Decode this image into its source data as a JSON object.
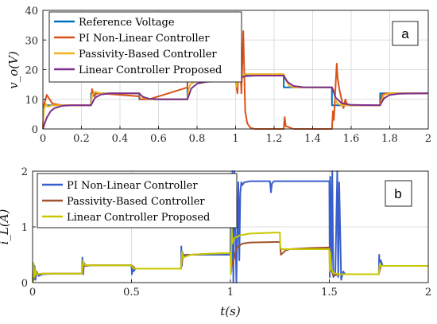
{
  "chart_data": [
    {
      "type": "line",
      "panel_label": "a",
      "ylabel": "v_o(V)",
      "xlabel": "",
      "xlim": [
        0,
        2
      ],
      "ylim": [
        0,
        40
      ],
      "xticks": [
        "0",
        "0.2",
        "0.4",
        "0.6",
        "0.8",
        "1",
        "1.2",
        "1.4",
        "1.6",
        "1.8",
        "2"
      ],
      "yticks": [
        "0",
        "10",
        "20",
        "30",
        "40"
      ],
      "grid": true,
      "legend": "top-left",
      "series": [
        {
          "name": "Reference Voltage",
          "color": "#0072BD",
          "x": [
            0,
            0.25,
            0.25,
            0.5,
            0.5,
            0.75,
            0.75,
            1.0,
            1.0,
            1.25,
            1.25,
            1.5,
            1.5,
            1.75,
            1.75,
            2.0
          ],
          "y": [
            8,
            8,
            12,
            12,
            10,
            10,
            16,
            16,
            18,
            18,
            14,
            14,
            8,
            8,
            12,
            12
          ]
        },
        {
          "name": "PI Non-Linear Controller",
          "color": "#D95319",
          "x": [
            0,
            0.005,
            0.02,
            0.05,
            0.1,
            0.25,
            0.255,
            0.265,
            0.28,
            0.3,
            0.5,
            0.505,
            0.52,
            0.55,
            0.75,
            0.752,
            0.76,
            0.78,
            0.8,
            1.0,
            1.005,
            1.01,
            1.02,
            1.03,
            1.04,
            1.05,
            1.06,
            1.07,
            1.08,
            1.1,
            1.15,
            1.25,
            1.255,
            1.26,
            1.3,
            1.5,
            1.505,
            1.51,
            1.515,
            1.52,
            1.525,
            1.53,
            1.54,
            1.55,
            1.56,
            1.57,
            1.58,
            1.6,
            1.75,
            1.76,
            1.78,
            2.0
          ],
          "y": [
            0,
            8,
            11.5,
            8.5,
            8,
            8,
            13.5,
            11,
            12,
            12,
            11,
            10,
            10,
            10,
            14,
            19,
            16,
            16,
            16,
            18,
            14,
            12,
            31,
            12,
            33,
            6,
            2,
            1,
            0.3,
            0,
            0,
            0,
            4,
            1,
            0,
            0,
            6,
            3,
            9,
            16,
            22,
            17,
            13,
            10,
            7,
            10,
            8,
            8,
            8,
            11.5,
            12,
            12
          ]
        },
        {
          "name": "Passivity-Based Controller",
          "color": "#EDB120",
          "x": [
            0,
            0.005,
            0.015,
            0.025,
            0.05,
            0.1,
            0.25,
            0.255,
            0.27,
            0.3,
            0.5,
            0.52,
            0.55,
            0.75,
            0.755,
            0.765,
            0.8,
            0.85,
            1.0,
            1.005,
            1.01,
            1.05,
            1.1,
            1.25,
            1.26,
            1.28,
            1.3,
            1.5,
            1.51,
            1.52,
            1.53,
            1.55,
            1.6,
            1.75,
            1.77,
            1.8,
            2.0
          ],
          "y": [
            0,
            6.5,
            8.5,
            7.5,
            8,
            8,
            8,
            11.5,
            12.5,
            12,
            12,
            10.5,
            10,
            10,
            13,
            15,
            16.5,
            16.5,
            16.5,
            14,
            17,
            18.5,
            18.5,
            18.5,
            16.5,
            14.5,
            14,
            14,
            13,
            9.5,
            8.5,
            8,
            8,
            8,
            11.5,
            12,
            12
          ]
        },
        {
          "name": "Linear Controller Proposed",
          "color": "#7E2F8E",
          "x": [
            0,
            0.01,
            0.02,
            0.04,
            0.06,
            0.1,
            0.15,
            0.25,
            0.27,
            0.3,
            0.35,
            0.5,
            0.52,
            0.55,
            0.6,
            0.75,
            0.77,
            0.8,
            0.85,
            0.9,
            1.0,
            1.02,
            1.05,
            1.1,
            1.25,
            1.27,
            1.3,
            1.35,
            1.5,
            1.52,
            1.55,
            1.6,
            1.75,
            1.77,
            1.8,
            1.85,
            2.0
          ],
          "y": [
            0,
            2,
            3.8,
            6,
            7,
            7.8,
            8,
            8,
            10.5,
            11.6,
            12,
            12,
            10.8,
            10.2,
            10,
            10,
            13.6,
            15.3,
            15.9,
            16,
            16,
            17.1,
            17.8,
            18,
            18,
            15.8,
            14.5,
            14.1,
            14,
            10.5,
            8.7,
            8.1,
            8,
            10.3,
            11.5,
            11.9,
            12
          ]
        }
      ]
    },
    {
      "type": "line",
      "panel_label": "b",
      "ylabel": "i_L(A)",
      "xlabel": "t(s)",
      "xlim": [
        0,
        2
      ],
      "ylim": [
        0,
        2
      ],
      "xticks": [
        "0",
        "0.5",
        "1",
        "1.5",
        "2"
      ],
      "yticks": [
        "0",
        "1",
        "2"
      ],
      "grid": true,
      "legend": "top-left",
      "series": [
        {
          "name": "PI Non-Linear Controller",
          "color": "#3A5FCD",
          "x": [
            0,
            0.003,
            0.006,
            0.01,
            0.015,
            0.02,
            0.03,
            0.05,
            0.1,
            0.25,
            0.252,
            0.256,
            0.26,
            0.27,
            0.3,
            0.5,
            0.502,
            0.506,
            0.51,
            0.52,
            0.55,
            0.75,
            0.752,
            0.755,
            0.758,
            0.762,
            0.77,
            0.8,
            1.0,
            1.002,
            1.005,
            1.01,
            1.015,
            1.02,
            1.03,
            1.04,
            1.045,
            1.05,
            1.055,
            1.06,
            1.07,
            1.1,
            1.2,
            1.205,
            1.21,
            1.22,
            1.3,
            1.5,
            1.502,
            1.505,
            1.51,
            1.515,
            1.52,
            1.53,
            1.54,
            1.545,
            1.55,
            1.56,
            1.57,
            1.58,
            1.6,
            1.75,
            1.752,
            1.755,
            1.76,
            1.77,
            1.8,
            2.0
          ],
          "y": [
            0,
            0.35,
            0.05,
            0.3,
            0.05,
            0.2,
            0.12,
            0.15,
            0.16,
            0.16,
            0.45,
            0.15,
            0.35,
            0.3,
            0.31,
            0.31,
            0.15,
            0.3,
            0.2,
            0.25,
            0.25,
            0.25,
            0.65,
            0.3,
            0.55,
            0.45,
            0.5,
            0.5,
            0.5,
            1.8,
            0.2,
            2.0,
            0,
            2.0,
            0,
            1.8,
            0.4,
            1.6,
            1.8,
            1.75,
            1.8,
            1.82,
            1.82,
            1.62,
            1.78,
            1.82,
            1.82,
            1.82,
            0.1,
            1.9,
            0.2,
            2.0,
            0.1,
            0.15,
            2.0,
            0.1,
            1.8,
            0.05,
            0.2,
            0.15,
            0.15,
            0.15,
            0.5,
            0.25,
            0.4,
            0.3,
            0.3,
            0.3
          ]
        },
        {
          "name": "Passivity-Based Controller",
          "color": "#A0522D",
          "x": [
            0,
            0.01,
            0.02,
            0.05,
            0.1,
            0.25,
            0.26,
            0.28,
            0.3,
            0.5,
            0.52,
            0.55,
            0.75,
            0.76,
            0.8,
            0.9,
            1.0,
            1.01,
            1.03,
            1.06,
            1.1,
            1.25,
            1.255,
            1.28,
            1.3,
            1.4,
            1.5,
            1.505,
            1.52,
            1.55,
            1.6,
            1.75,
            1.76,
            1.8,
            2.0
          ],
          "y": [
            0,
            0.12,
            0.15,
            0.16,
            0.16,
            0.16,
            0.3,
            0.31,
            0.31,
            0.31,
            0.25,
            0.25,
            0.25,
            0.48,
            0.5,
            0.52,
            0.53,
            0.3,
            0.62,
            0.7,
            0.72,
            0.73,
            0.5,
            0.58,
            0.6,
            0.62,
            0.63,
            0.3,
            0.12,
            0.15,
            0.15,
            0.15,
            0.3,
            0.3,
            0.3
          ]
        },
        {
          "name": "Linear Controller Proposed",
          "color": "#C8C800",
          "x": [
            0,
            0.005,
            0.01,
            0.015,
            0.02,
            0.05,
            0.1,
            0.25,
            0.255,
            0.26,
            0.28,
            0.3,
            0.5,
            0.51,
            0.55,
            0.75,
            0.755,
            0.76,
            0.8,
            0.9,
            1.0,
            1.003,
            1.006,
            1.01,
            1.02,
            1.05,
            1.1,
            1.25,
            1.252,
            1.26,
            1.3,
            1.5,
            1.502,
            1.505,
            1.51,
            1.52,
            1.55,
            1.75,
            1.755,
            1.76,
            1.8,
            2.0
          ],
          "y": [
            0,
            0.35,
            0.1,
            0.22,
            0.15,
            0.16,
            0.16,
            0.16,
            0.4,
            0.32,
            0.31,
            0.31,
            0.31,
            0.25,
            0.25,
            0.25,
            0.55,
            0.45,
            0.5,
            0.52,
            0.53,
            0.15,
            1.0,
            0.7,
            0.8,
            0.85,
            0.88,
            0.9,
            0.62,
            0.6,
            0.6,
            0.6,
            0.2,
            0.55,
            0.25,
            0.17,
            0.15,
            0.15,
            0.35,
            0.3,
            0.3,
            0.3
          ]
        }
      ]
    }
  ]
}
